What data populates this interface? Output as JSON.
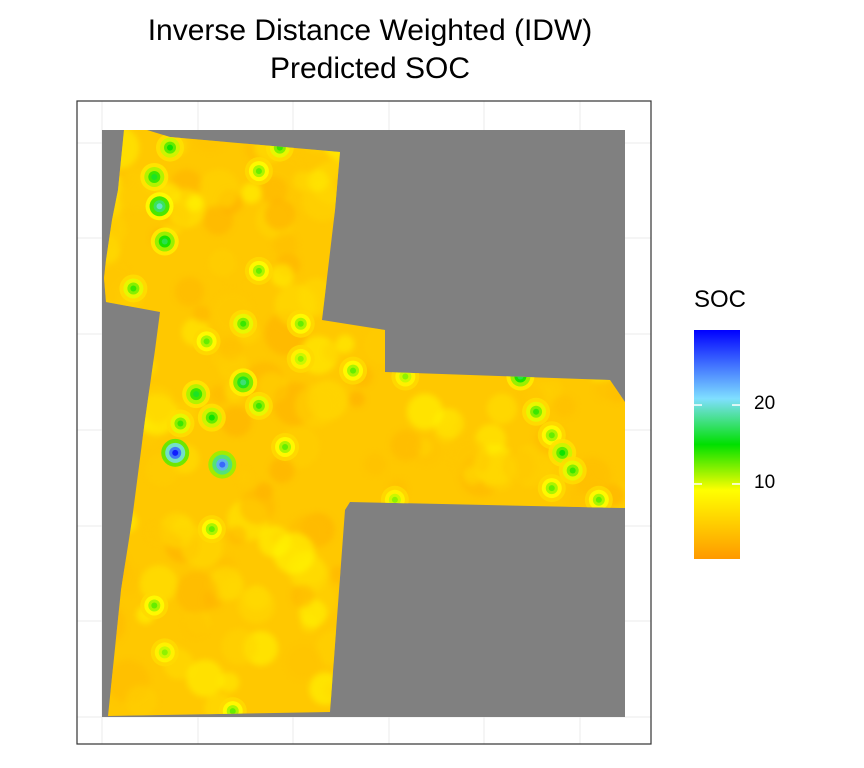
{
  "chart_data": {
    "type": "heatmap",
    "title": "Inverse Distance Weighted (IDW)",
    "subtitle": "Predicted SOC",
    "legend": {
      "title": "SOC",
      "placement": "right",
      "scale": "continuous",
      "range": [
        0.5,
        29.5
      ],
      "ticks": [
        10,
        20
      ],
      "tick_labels": [
        "10",
        "20"
      ],
      "colors": [
        "#ff9900",
        "#ffff00",
        "#00e000",
        "#7fdfff",
        "#0000ff"
      ],
      "color_stops": [
        0.0,
        0.3,
        0.5,
        0.7,
        1.0
      ]
    },
    "axes": {
      "x_tick_labels": [],
      "y_tick_labels": [],
      "grid": true
    },
    "background_color": "#808080",
    "hotspots": [
      {
        "x": 0.13,
        "y": 0.03,
        "soc": 15
      },
      {
        "x": 0.1,
        "y": 0.08,
        "soc": 16
      },
      {
        "x": 0.11,
        "y": 0.13,
        "soc": 20
      },
      {
        "x": 0.12,
        "y": 0.19,
        "soc": 17
      },
      {
        "x": 0.06,
        "y": 0.27,
        "soc": 14
      },
      {
        "x": 0.3,
        "y": 0.07,
        "soc": 13
      },
      {
        "x": 0.34,
        "y": 0.03,
        "soc": 14
      },
      {
        "x": 0.3,
        "y": 0.24,
        "soc": 13
      },
      {
        "x": 0.27,
        "y": 0.33,
        "soc": 14
      },
      {
        "x": 0.2,
        "y": 0.36,
        "soc": 13
      },
      {
        "x": 0.38,
        "y": 0.33,
        "soc": 13
      },
      {
        "x": 0.27,
        "y": 0.43,
        "soc": 18
      },
      {
        "x": 0.18,
        "y": 0.45,
        "soc": 16
      },
      {
        "x": 0.3,
        "y": 0.47,
        "soc": 14
      },
      {
        "x": 0.21,
        "y": 0.49,
        "soc": 15
      },
      {
        "x": 0.15,
        "y": 0.5,
        "soc": 14
      },
      {
        "x": 0.14,
        "y": 0.55,
        "soc": 29
      },
      {
        "x": 0.23,
        "y": 0.57,
        "soc": 26
      },
      {
        "x": 0.35,
        "y": 0.54,
        "soc": 13
      },
      {
        "x": 0.21,
        "y": 0.68,
        "soc": 13
      },
      {
        "x": 0.48,
        "y": 0.41,
        "soc": 13
      },
      {
        "x": 0.58,
        "y": 0.42,
        "soc": 12
      },
      {
        "x": 0.8,
        "y": 0.42,
        "soc": 17
      },
      {
        "x": 0.83,
        "y": 0.48,
        "soc": 14
      },
      {
        "x": 0.86,
        "y": 0.52,
        "soc": 13
      },
      {
        "x": 0.88,
        "y": 0.55,
        "soc": 15
      },
      {
        "x": 0.9,
        "y": 0.58,
        "soc": 14
      },
      {
        "x": 0.86,
        "y": 0.61,
        "soc": 13
      },
      {
        "x": 0.95,
        "y": 0.63,
        "soc": 13
      },
      {
        "x": 0.93,
        "y": 0.68,
        "soc": 14
      },
      {
        "x": 0.56,
        "y": 0.63,
        "soc": 12
      },
      {
        "x": 0.1,
        "y": 0.81,
        "soc": 13
      },
      {
        "x": 0.25,
        "y": 0.99,
        "soc": 13
      },
      {
        "x": 0.38,
        "y": 0.39,
        "soc": 12
      },
      {
        "x": 0.12,
        "y": 0.89,
        "soc": 12
      }
    ]
  }
}
